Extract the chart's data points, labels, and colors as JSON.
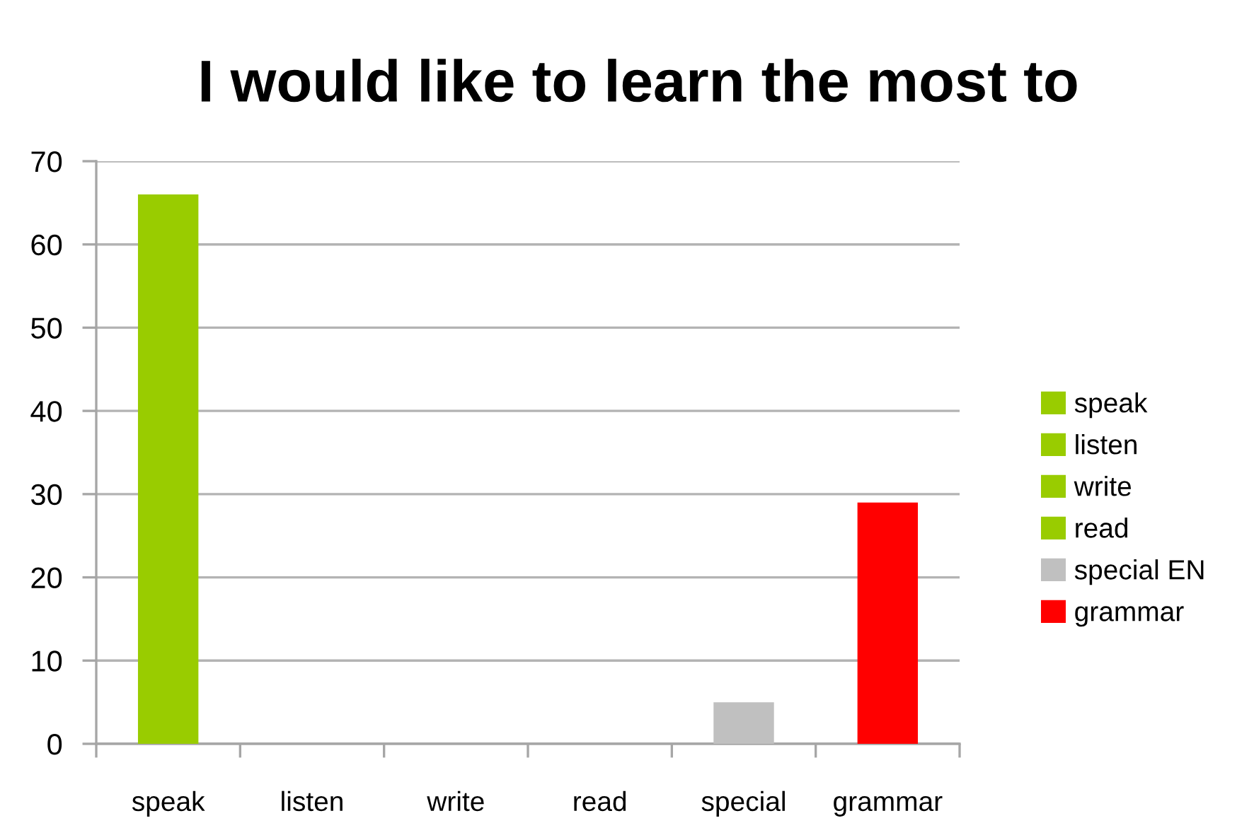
{
  "chart_data": {
    "type": "bar",
    "title": "I would like to learn the most to",
    "categories": [
      "speak",
      "listen",
      "write",
      "read",
      "special",
      "grammar"
    ],
    "series": [
      {
        "name": "speak",
        "color": "#99cc00",
        "values": [
          66,
          null,
          null,
          null,
          null,
          null
        ]
      },
      {
        "name": "listen",
        "color": "#99cc00",
        "values": [
          null,
          0,
          null,
          null,
          null,
          null
        ]
      },
      {
        "name": "write",
        "color": "#99cc00",
        "values": [
          null,
          null,
          0,
          null,
          null,
          null
        ]
      },
      {
        "name": "read",
        "color": "#99cc00",
        "values": [
          null,
          null,
          null,
          0,
          null,
          null
        ]
      },
      {
        "name": "special EN",
        "color": "#c0c0c0",
        "values": [
          null,
          null,
          null,
          null,
          5,
          null
        ]
      },
      {
        "name": "grammar",
        "color": "#ff0000",
        "values": [
          null,
          null,
          null,
          null,
          null,
          29
        ]
      }
    ],
    "stacked": true,
    "ylim": [
      0,
      70
    ],
    "yticks": [
      0,
      10,
      20,
      30,
      40,
      50,
      60,
      70
    ],
    "grid": "y",
    "legend": "right"
  }
}
